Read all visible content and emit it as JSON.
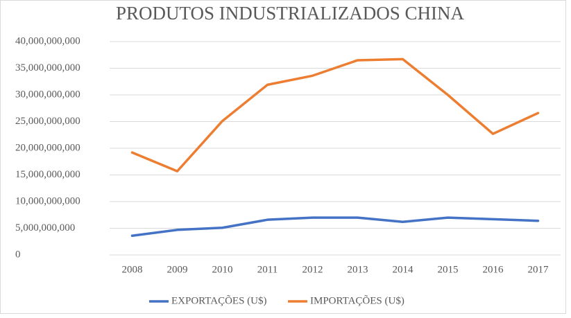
{
  "chart_data": {
    "type": "line",
    "title": "PRODUTOS INDUSTRIALIZADOS CHINA",
    "categories": [
      "2008",
      "2009",
      "2010",
      "2011",
      "2012",
      "2013",
      "2014",
      "2015",
      "2016",
      "2017"
    ],
    "series": [
      {
        "name": "EXPORTAÇÕES (U$)",
        "color": "#4472c4",
        "values": [
          3600000000,
          4700000000,
          5100000000,
          6600000000,
          7000000000,
          7000000000,
          6200000000,
          7000000000,
          6700000000,
          6400000000
        ]
      },
      {
        "name": "IMPORTAÇÕES (U$)",
        "color": "#ed7d31",
        "values": [
          19200000000,
          15700000000,
          25100000000,
          31900000000,
          33600000000,
          36500000000,
          36700000000,
          30000000000,
          22700000000,
          26600000000
        ]
      }
    ],
    "ylim": [
      0,
      40000000000
    ],
    "yticks": [
      0,
      {
        "value": 5000000000,
        "label": "5,000,000,000"
      },
      {
        "value": 10000000000,
        "label": "10,000,000,000"
      },
      {
        "value": 15000000000,
        "label": "15,000,000,000"
      },
      {
        "value": 20000000000,
        "label": "20,000,000,000"
      },
      {
        "value": 25000000000,
        "label": "25,000,000,000"
      },
      {
        "value": 30000000000,
        "label": "30,000,000,000"
      },
      {
        "value": 35000000000,
        "label": "35,000,000,000"
      },
      {
        "value": 40000000000,
        "label": "40,000,000,000"
      }
    ],
    "grid": true,
    "legend": "bottom"
  }
}
